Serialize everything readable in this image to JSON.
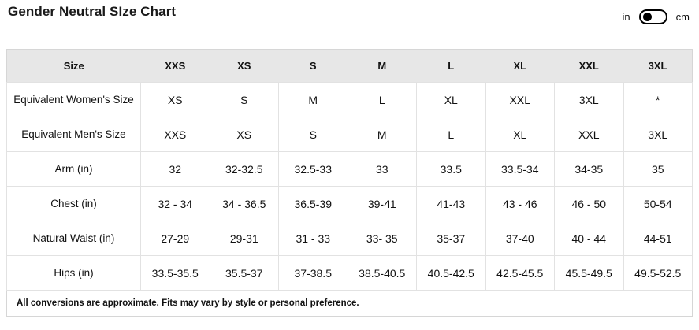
{
  "page": {
    "title": "Gender Neutral SIze Chart"
  },
  "unit_toggle": {
    "left_label": "in",
    "right_label": "cm",
    "selected": "in"
  },
  "table": {
    "columns": [
      "Size",
      "XXS",
      "XS",
      "S",
      "M",
      "L",
      "XL",
      "XXL",
      "3XL"
    ],
    "rows": [
      {
        "label": "Equivalent Women's Size",
        "values": [
          "XS",
          "S",
          "M",
          "L",
          "XL",
          "XXL",
          "3XL",
          "*"
        ]
      },
      {
        "label": "Equivalent Men's Size",
        "values": [
          "XXS",
          "XS",
          "S",
          "M",
          "L",
          "XL",
          "XXL",
          "3XL"
        ]
      },
      {
        "label": "Arm (in)",
        "values": [
          "32",
          "32-32.5",
          "32.5-33",
          "33",
          "33.5",
          "33.5-34",
          "34-35",
          "35"
        ]
      },
      {
        "label": "Chest (in)",
        "values": [
          "32 - 34",
          "34 - 36.5",
          "36.5-39",
          "39-41",
          "41-43",
          "43 - 46",
          "46 - 50",
          "50-54"
        ]
      },
      {
        "label": "Natural Waist (in)",
        "values": [
          "27-29",
          "29-31",
          "31 - 33",
          "33- 35",
          "35-37",
          "37-40",
          "40 - 44",
          "44-51"
        ]
      },
      {
        "label": "Hips (in)",
        "values": [
          "33.5-35.5",
          "35.5-37",
          "37-38.5",
          "38.5-40.5",
          "40.5-42.5",
          "42.5-45.5",
          "45.5-49.5",
          "49.5-52.5"
        ]
      }
    ],
    "footnote": "All conversions are approximate. Fits may vary by style or personal preference."
  },
  "colors": {
    "header_bg": "#e7e7e7",
    "cell_border": "#e2e2e2",
    "outer_border": "#d6d6d6",
    "text": "#111111",
    "toggle_knob": "#000000"
  }
}
